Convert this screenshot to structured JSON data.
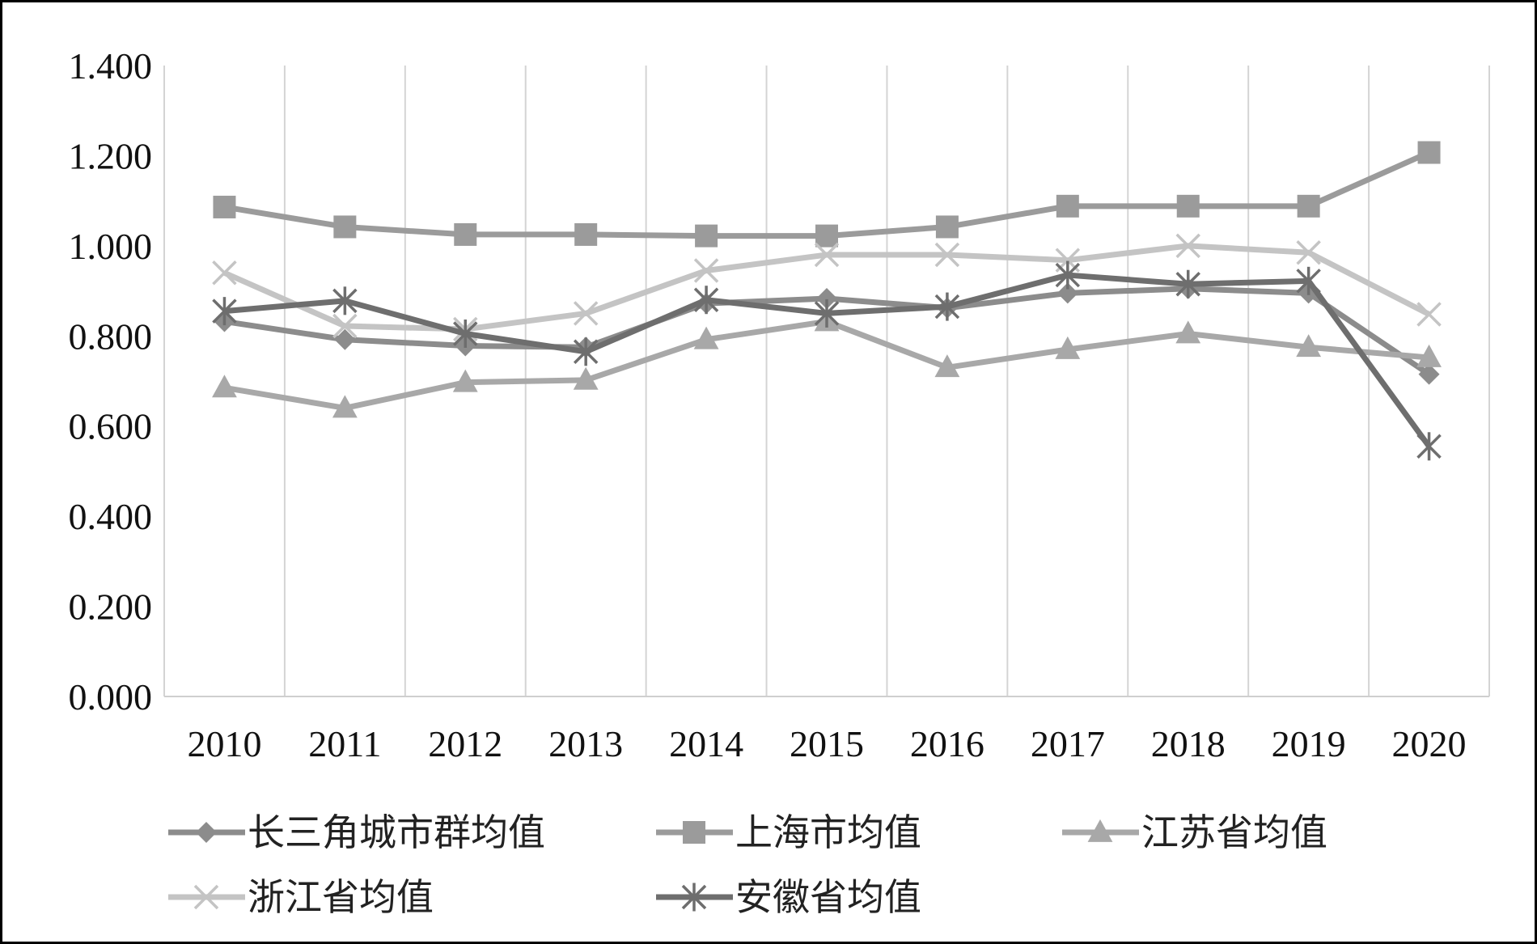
{
  "chart_data": {
    "type": "line",
    "title": "",
    "xlabel": "",
    "ylabel": "",
    "ylim": [
      0,
      1.4
    ],
    "yticks": [
      "0.000",
      "0.200",
      "0.400",
      "0.600",
      "0.800",
      "1.000",
      "1.200",
      "1.400"
    ],
    "categories": [
      "2010",
      "2011",
      "2012",
      "2013",
      "2014",
      "2015",
      "2016",
      "2017",
      "2018",
      "2019",
      "2020"
    ],
    "grid": "vertical",
    "legend_position": "bottom",
    "series": [
      {
        "name": "长三角城市群均值",
        "marker": "diamond",
        "color": "#8c8c8c",
        "values": [
          0.832,
          0.792,
          0.778,
          0.775,
          0.872,
          0.883,
          0.862,
          0.895,
          0.905,
          0.895,
          0.715
        ]
      },
      {
        "name": "上海市均值",
        "marker": "square",
        "color": "#9b9b9b",
        "values": [
          1.086,
          1.042,
          1.025,
          1.025,
          1.022,
          1.022,
          1.042,
          1.088,
          1.088,
          1.088,
          1.207
        ]
      },
      {
        "name": "江苏省均值",
        "marker": "triangle",
        "color": "#a8a8a8",
        "values": [
          0.685,
          0.64,
          0.697,
          0.702,
          0.792,
          0.832,
          0.73,
          0.77,
          0.805,
          0.775,
          0.752
        ]
      },
      {
        "name": "浙江省均值",
        "marker": "x",
        "color": "#c4c4c4",
        "values": [
          0.94,
          0.822,
          0.815,
          0.85,
          0.945,
          0.98,
          0.98,
          0.968,
          1.0,
          0.985,
          0.848
        ]
      },
      {
        "name": "安徽省均值",
        "marker": "star",
        "color": "#6e6e6e",
        "values": [
          0.855,
          0.878,
          0.805,
          0.765,
          0.88,
          0.85,
          0.865,
          0.935,
          0.915,
          0.922,
          0.555
        ]
      }
    ]
  }
}
